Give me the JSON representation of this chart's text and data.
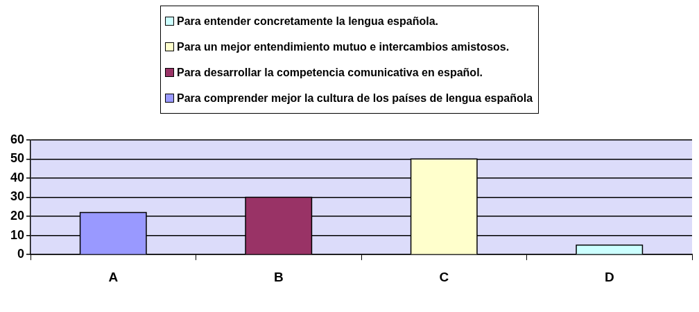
{
  "chart_data": {
    "type": "bar",
    "categories": [
      "A",
      "B",
      "C",
      "D"
    ],
    "series": [
      {
        "name": "Para entender concretamente la lengua española.",
        "color": "#ccffff",
        "values": [
          null,
          null,
          null,
          5
        ]
      },
      {
        "name": "Para un mejor entendimiento mutuo e intercambios amistosos.",
        "color": "#ffffcc",
        "values": [
          null,
          null,
          50,
          null
        ]
      },
      {
        "name": "Para desarrollar la competencia comunicativa en español.",
        "color": "#993366",
        "values": [
          null,
          30,
          null,
          null
        ]
      },
      {
        "name": "Para comprender mejor la cultura de los países de lengua española",
        "color": "#9999ff",
        "values": [
          22,
          null,
          null,
          null
        ]
      }
    ],
    "ylim": [
      0,
      60
    ],
    "yticks": [
      0,
      10,
      20,
      30,
      40,
      50,
      60
    ],
    "grid": "y",
    "legend": "top"
  }
}
